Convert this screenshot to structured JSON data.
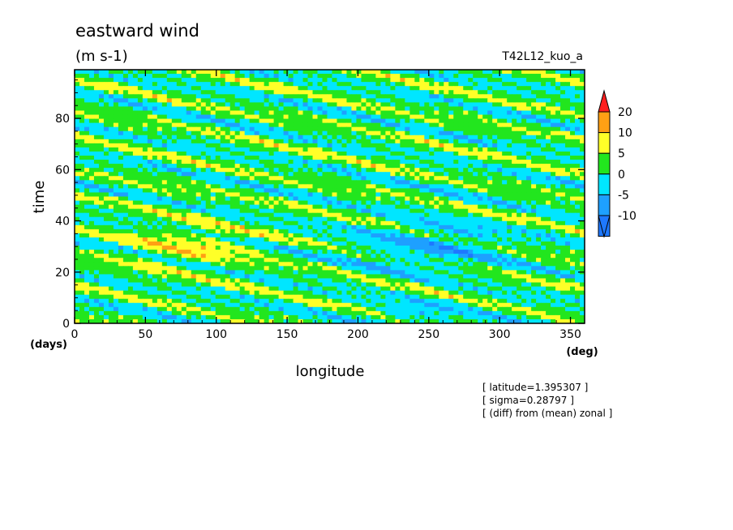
{
  "chart_data": {
    "type": "heatmap",
    "title": "eastward wind",
    "units": "(m s-1)",
    "experiment": "T42L12_kuo_a",
    "xlabel": "longitude",
    "ylabel": "time",
    "x_unit": "(deg)",
    "y_unit": "(days)",
    "xlim": [
      0,
      360
    ],
    "ylim": [
      0,
      99
    ],
    "x_ticks": [
      0,
      50,
      100,
      150,
      200,
      250,
      300,
      350
    ],
    "y_ticks": [
      0,
      20,
      40,
      60,
      80
    ],
    "levels": [
      -10,
      -5,
      0,
      5,
      10,
      20
    ],
    "colors": [
      "#1e78ff",
      "#1ea0ff",
      "#00e6ff",
      "#22e61e",
      "#ffff28",
      "#ffa014",
      "#ff1e1e"
    ],
    "notes": [
      "[ latitude=1.395307 ]",
      "[ sigma=0.28797 ]",
      "[ (diff) from (mean) zonal ]"
    ]
  }
}
